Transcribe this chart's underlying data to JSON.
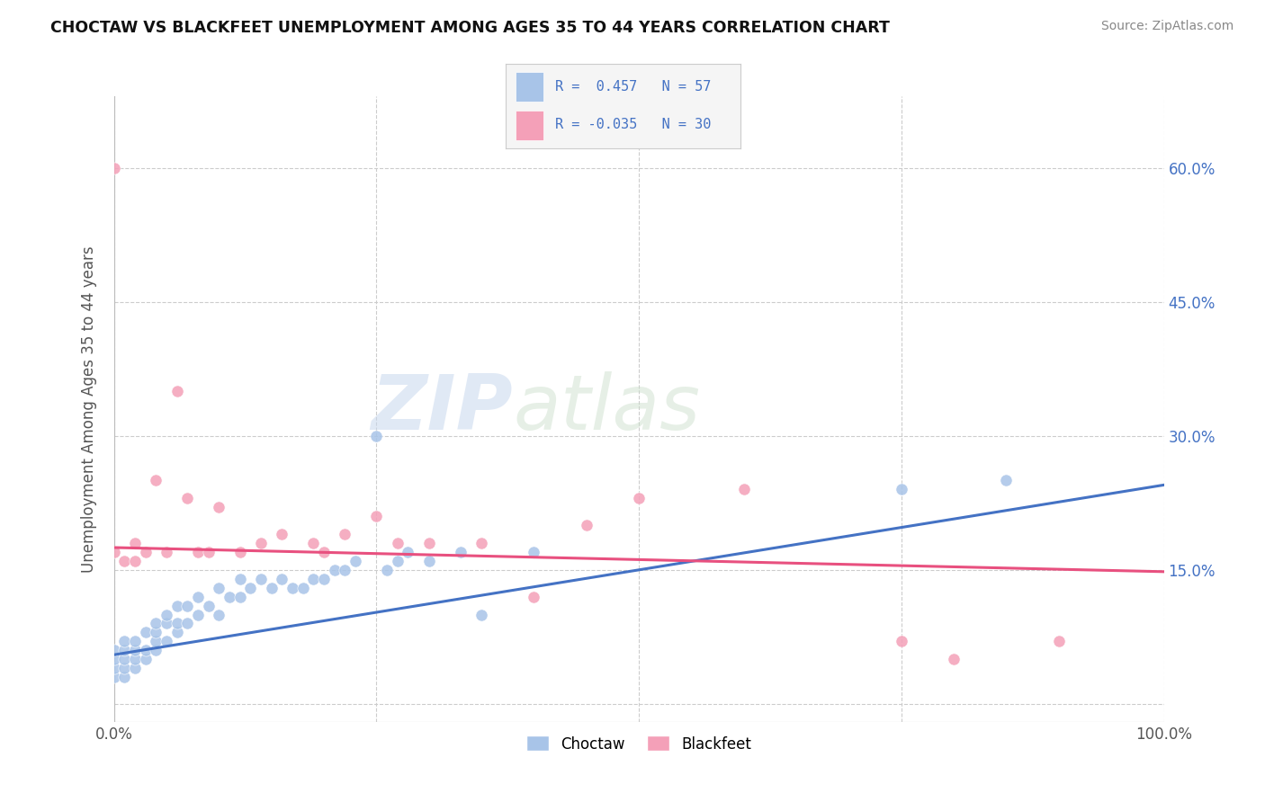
{
  "title": "CHOCTAW VS BLACKFEET UNEMPLOYMENT AMONG AGES 35 TO 44 YEARS CORRELATION CHART",
  "source": "Source: ZipAtlas.com",
  "ylabel": "Unemployment Among Ages 35 to 44 years",
  "xlim": [
    0.0,
    1.0
  ],
  "ylim": [
    -0.02,
    0.68
  ],
  "ytick_positions": [
    0.0,
    0.15,
    0.3,
    0.45,
    0.6
  ],
  "yticklabels": [
    "",
    "15.0%",
    "30.0%",
    "45.0%",
    "60.0%"
  ],
  "choctaw_color": "#a8c4e8",
  "blackfeet_color": "#f4a0b8",
  "choctaw_line_color": "#4472c4",
  "blackfeet_line_color": "#e8507f",
  "legend_text_color": "#4472c4",
  "R_choctaw": 0.457,
  "N_choctaw": 57,
  "R_blackfeet": -0.035,
  "N_blackfeet": 30,
  "grid_color": "#cccccc",
  "choctaw_x": [
    0.0,
    0.0,
    0.0,
    0.0,
    0.01,
    0.01,
    0.01,
    0.01,
    0.01,
    0.02,
    0.02,
    0.02,
    0.02,
    0.03,
    0.03,
    0.03,
    0.04,
    0.04,
    0.04,
    0.04,
    0.05,
    0.05,
    0.05,
    0.06,
    0.06,
    0.06,
    0.07,
    0.07,
    0.08,
    0.08,
    0.09,
    0.1,
    0.1,
    0.11,
    0.12,
    0.12,
    0.13,
    0.14,
    0.15,
    0.16,
    0.17,
    0.18,
    0.19,
    0.2,
    0.21,
    0.22,
    0.23,
    0.25,
    0.26,
    0.27,
    0.28,
    0.3,
    0.33,
    0.35,
    0.4,
    0.75,
    0.85
  ],
  "choctaw_y": [
    0.03,
    0.04,
    0.05,
    0.06,
    0.03,
    0.04,
    0.05,
    0.06,
    0.07,
    0.04,
    0.05,
    0.06,
    0.07,
    0.05,
    0.06,
    0.08,
    0.06,
    0.07,
    0.08,
    0.09,
    0.07,
    0.09,
    0.1,
    0.08,
    0.09,
    0.11,
    0.09,
    0.11,
    0.1,
    0.12,
    0.11,
    0.1,
    0.13,
    0.12,
    0.12,
    0.14,
    0.13,
    0.14,
    0.13,
    0.14,
    0.13,
    0.13,
    0.14,
    0.14,
    0.15,
    0.15,
    0.16,
    0.3,
    0.15,
    0.16,
    0.17,
    0.16,
    0.17,
    0.1,
    0.17,
    0.24,
    0.25
  ],
  "blackfeet_x": [
    0.0,
    0.0,
    0.01,
    0.02,
    0.02,
    0.03,
    0.04,
    0.05,
    0.06,
    0.07,
    0.08,
    0.09,
    0.1,
    0.12,
    0.14,
    0.16,
    0.19,
    0.2,
    0.22,
    0.25,
    0.27,
    0.3,
    0.35,
    0.4,
    0.45,
    0.5,
    0.6,
    0.75,
    0.8,
    0.9
  ],
  "blackfeet_y": [
    0.6,
    0.17,
    0.16,
    0.16,
    0.18,
    0.17,
    0.25,
    0.17,
    0.35,
    0.23,
    0.17,
    0.17,
    0.22,
    0.17,
    0.18,
    0.19,
    0.18,
    0.17,
    0.19,
    0.21,
    0.18,
    0.18,
    0.18,
    0.12,
    0.2,
    0.23,
    0.24,
    0.07,
    0.05,
    0.07
  ],
  "choctaw_line_x": [
    0.0,
    1.0
  ],
  "choctaw_line_y": [
    0.055,
    0.245
  ],
  "blackfeet_line_x": [
    0.0,
    1.0
  ],
  "blackfeet_line_y": [
    0.175,
    0.148
  ]
}
